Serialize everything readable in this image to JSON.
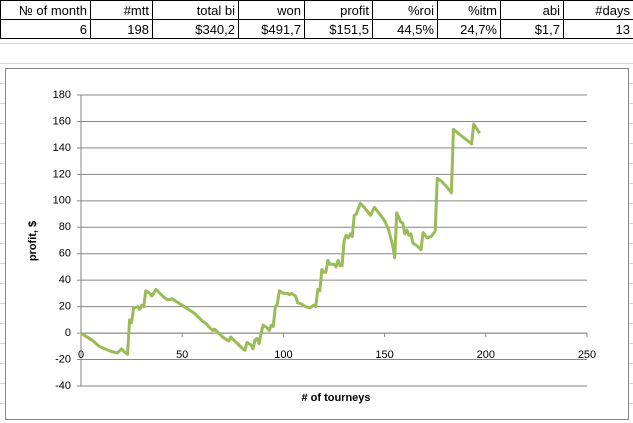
{
  "table": {
    "headers": [
      "№ of month",
      "#mtt",
      "total bi",
      "won",
      "profit",
      "%roi",
      "%itm",
      "abi",
      "#days"
    ],
    "rows": [
      [
        "6",
        "198",
        "$340,2",
        "$491,7",
        "$151,5",
        "44,5%",
        "24,7%",
        "$1,7",
        "13"
      ]
    ]
  },
  "chart_data": {
    "type": "line",
    "xlabel": "# of tourneys",
    "ylabel": "profit, $",
    "x": [
      0,
      3,
      6,
      9,
      12,
      15,
      18,
      20,
      22,
      23,
      24,
      25,
      26,
      28,
      29,
      30,
      31,
      32,
      34,
      35,
      37,
      39,
      41,
      43,
      45,
      47,
      50,
      53,
      56,
      58,
      60,
      62,
      63,
      65,
      66,
      68,
      70,
      72,
      73,
      74,
      76,
      78,
      80,
      81,
      82,
      84,
      85,
      86,
      87,
      88,
      89,
      90,
      92,
      93,
      94,
      95,
      96,
      97,
      98,
      100,
      102,
      103,
      104,
      106,
      107,
      109,
      111,
      113,
      115,
      116,
      117,
      118,
      119,
      120,
      121,
      122,
      123,
      125,
      126,
      127,
      128,
      129,
      130,
      131,
      132,
      133,
      134,
      135,
      136,
      137,
      138,
      140,
      142,
      143,
      145,
      147,
      150,
      152,
      154,
      155,
      156,
      158,
      159,
      160,
      161,
      162,
      163,
      164,
      166,
      168,
      169,
      171,
      173,
      175,
      176,
      178,
      181,
      183,
      184,
      193,
      194,
      197
    ],
    "series": [
      {
        "name": "profit",
        "color": "#9bbb59",
        "values": [
          0,
          -3,
          -6,
          -10,
          -12,
          -14,
          -15,
          -12,
          -15,
          -16,
          10,
          8,
          19,
          20,
          18,
          21,
          20,
          32,
          30,
          28,
          33,
          30,
          27,
          25,
          26,
          24,
          21,
          18,
          15,
          12,
          9,
          7,
          5,
          2,
          3,
          0,
          -3,
          -5,
          -6,
          -3,
          -6,
          -9,
          -12,
          -13,
          -7,
          -9,
          -12,
          -5,
          -4,
          -8,
          0,
          6,
          4,
          2,
          6,
          5,
          20,
          22,
          32,
          30,
          30,
          29,
          30,
          28,
          23,
          22,
          20,
          19,
          21,
          20,
          33,
          32,
          48,
          46,
          46,
          55,
          52,
          52,
          50,
          55,
          51,
          51,
          70,
          74,
          72,
          75,
          73,
          89,
          90,
          94,
          98,
          95,
          91,
          89,
          95,
          91,
          85,
          78,
          66,
          57,
          91,
          84,
          83,
          75,
          78,
          74,
          75,
          68,
          66,
          63,
          76,
          72,
          73,
          77,
          117,
          115,
          110,
          106,
          154,
          143,
          158,
          151
        ]
      }
    ],
    "xlim": [
      0,
      250
    ],
    "xticks": [
      0,
      50,
      100,
      150,
      200,
      250
    ],
    "ylim": [
      -40,
      180
    ],
    "yticks": [
      -40,
      -20,
      0,
      20,
      40,
      60,
      80,
      100,
      120,
      140,
      160,
      180
    ],
    "grid": true
  }
}
